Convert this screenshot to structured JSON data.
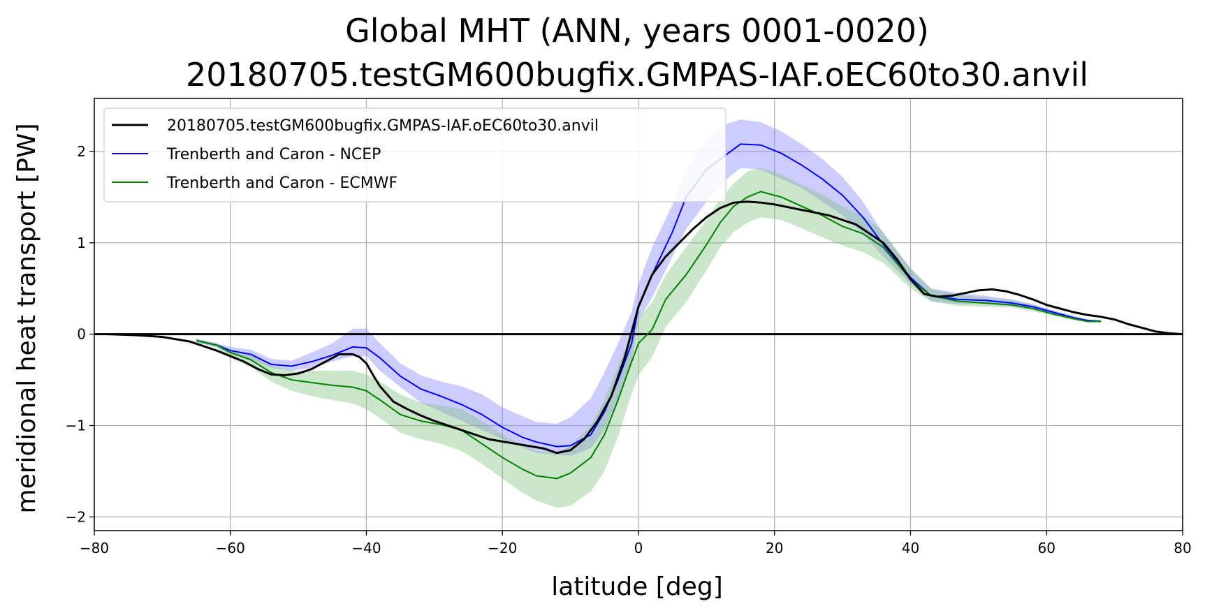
{
  "chart_data": {
    "type": "line",
    "title": "Global MHT (ANN, years 0001-0020)",
    "subtitle": "20180705.testGM600bugfix.GMPAS-IAF.oEC60to30.anvil",
    "xlabel": "latitude [deg]",
    "ylabel": "meridional heat transport [PW]",
    "xlim": [
      -80,
      80
    ],
    "ylim": [
      -2.15,
      2.58
    ],
    "xticks": [
      -80,
      -60,
      -40,
      -20,
      0,
      20,
      40,
      60,
      80
    ],
    "yticks": [
      -2,
      -1,
      0,
      1,
      2
    ],
    "grid": true,
    "legend": "upper-left",
    "zero_line": 0,
    "series": [
      {
        "name": "20180705.testGM600bugfix.GMPAS-IAF.oEC60to30.anvil",
        "color": "#000000",
        "x": [
          -78,
          -74,
          -70,
          -66,
          -62,
          -58,
          -56,
          -54,
          -52,
          -50,
          -48,
          -46,
          -44,
          -42,
          -41,
          -40,
          -39,
          -38,
          -36,
          -34,
          -32,
          -30,
          -26,
          -22,
          -18,
          -14,
          -12,
          -10,
          -8,
          -6,
          -4,
          -2,
          0,
          2,
          4,
          6,
          8,
          10,
          12,
          14,
          16,
          18,
          20,
          22,
          24,
          26,
          28,
          30,
          32,
          34,
          36,
          38,
          40,
          42,
          44,
          46,
          48,
          50,
          52,
          54,
          56,
          58,
          60,
          62,
          64,
          66,
          68,
          70,
          72,
          74,
          76,
          78,
          80
        ],
        "y": [
          0.0,
          -0.01,
          -0.03,
          -0.08,
          -0.18,
          -0.3,
          -0.38,
          -0.44,
          -0.45,
          -0.43,
          -0.38,
          -0.3,
          -0.22,
          -0.22,
          -0.25,
          -0.32,
          -0.45,
          -0.57,
          -0.74,
          -0.82,
          -0.89,
          -0.95,
          -1.05,
          -1.15,
          -1.2,
          -1.25,
          -1.3,
          -1.27,
          -1.15,
          -0.95,
          -0.68,
          -0.25,
          0.3,
          0.65,
          0.85,
          1.0,
          1.15,
          1.28,
          1.38,
          1.44,
          1.45,
          1.44,
          1.42,
          1.39,
          1.36,
          1.33,
          1.3,
          1.25,
          1.2,
          1.1,
          1.0,
          0.82,
          0.6,
          0.44,
          0.41,
          0.42,
          0.45,
          0.48,
          0.49,
          0.47,
          0.43,
          0.38,
          0.32,
          0.28,
          0.24,
          0.21,
          0.19,
          0.16,
          0.11,
          0.07,
          0.03,
          0.01,
          0.0
        ]
      },
      {
        "name": "Trenberth and Caron - NCEP",
        "color": "#0000ff",
        "band_color": "#8080ff",
        "x": [
          -65,
          -62,
          -60,
          -57,
          -54,
          -51,
          -48,
          -45,
          -42,
          -40,
          -38,
          -35,
          -32,
          -29,
          -26,
          -23,
          -20,
          -17,
          -15,
          -12,
          -10,
          -7,
          -5,
          -3,
          -1,
          0,
          2,
          5,
          7,
          10,
          13,
          15,
          18,
          21,
          24,
          27,
          30,
          33,
          36,
          40,
          43,
          47,
          51,
          55,
          58,
          61,
          64,
          66,
          68
        ],
        "y": [
          -0.07,
          -0.12,
          -0.18,
          -0.22,
          -0.33,
          -0.35,
          -0.3,
          -0.23,
          -0.14,
          -0.15,
          -0.26,
          -0.46,
          -0.6,
          -0.68,
          -0.77,
          -0.88,
          -1.02,
          -1.13,
          -1.18,
          -1.23,
          -1.22,
          -1.1,
          -0.85,
          -0.5,
          -0.1,
          0.3,
          0.65,
          1.12,
          1.5,
          1.8,
          1.97,
          2.08,
          2.07,
          1.98,
          1.85,
          1.7,
          1.52,
          1.28,
          0.98,
          0.62,
          0.42,
          0.38,
          0.37,
          0.34,
          0.3,
          0.24,
          0.18,
          0.15,
          0.14
        ],
        "lower": [
          -0.09,
          -0.14,
          -0.22,
          -0.27,
          -0.37,
          -0.4,
          -0.37,
          -0.3,
          -0.24,
          -0.24,
          -0.4,
          -0.58,
          -0.75,
          -0.85,
          -0.95,
          -1.05,
          -1.15,
          -1.24,
          -1.3,
          -1.32,
          -1.33,
          -1.25,
          -1.05,
          -0.7,
          -0.3,
          0.15,
          0.4,
          0.85,
          1.15,
          1.45,
          1.7,
          1.82,
          1.8,
          1.7,
          1.6,
          1.45,
          1.3,
          1.1,
          0.85,
          0.55,
          0.36,
          0.33,
          0.33,
          0.3,
          0.27,
          0.21,
          0.16,
          0.14,
          0.13
        ],
        "upper": [
          -0.05,
          -0.1,
          -0.14,
          -0.17,
          -0.27,
          -0.29,
          -0.2,
          -0.1,
          0.06,
          0.06,
          -0.1,
          -0.32,
          -0.45,
          -0.52,
          -0.57,
          -0.66,
          -0.8,
          -0.9,
          -0.96,
          -0.98,
          -0.91,
          -0.7,
          -0.42,
          -0.1,
          0.25,
          0.55,
          0.95,
          1.42,
          1.8,
          2.12,
          2.3,
          2.35,
          2.32,
          2.22,
          2.08,
          1.92,
          1.72,
          1.45,
          1.1,
          0.72,
          0.5,
          0.45,
          0.42,
          0.38,
          0.33,
          0.26,
          0.2,
          0.16,
          0.15
        ]
      },
      {
        "name": "Trenberth and Caron - ECMWF",
        "color": "#008000",
        "band_color": "#80c080",
        "x": [
          -65,
          -62,
          -60,
          -57,
          -54,
          -51,
          -48,
          -45,
          -42,
          -40,
          -38,
          -35,
          -32,
          -29,
          -26,
          -23,
          -20,
          -17,
          -15,
          -12,
          -10,
          -7,
          -5,
          -3,
          -1,
          0,
          2,
          4,
          7,
          10,
          12,
          14,
          16,
          18,
          21,
          24,
          27,
          30,
          33,
          36,
          40,
          43,
          47,
          51,
          55,
          58,
          61,
          64,
          66,
          68
        ],
        "y": [
          -0.07,
          -0.12,
          -0.2,
          -0.28,
          -0.42,
          -0.5,
          -0.53,
          -0.56,
          -0.58,
          -0.62,
          -0.72,
          -0.88,
          -0.95,
          -0.99,
          -1.05,
          -1.2,
          -1.35,
          -1.48,
          -1.55,
          -1.58,
          -1.52,
          -1.35,
          -1.1,
          -0.72,
          -0.3,
          -0.1,
          0.05,
          0.38,
          0.65,
          0.98,
          1.22,
          1.4,
          1.5,
          1.56,
          1.5,
          1.4,
          1.3,
          1.18,
          1.1,
          0.95,
          0.6,
          0.42,
          0.36,
          0.34,
          0.32,
          0.28,
          0.22,
          0.17,
          0.14,
          0.14
        ],
        "lower": [
          -0.09,
          -0.15,
          -0.26,
          -0.36,
          -0.52,
          -0.62,
          -0.68,
          -0.72,
          -0.76,
          -0.82,
          -0.92,
          -1.08,
          -1.15,
          -1.2,
          -1.28,
          -1.42,
          -1.58,
          -1.74,
          -1.82,
          -1.9,
          -1.88,
          -1.72,
          -1.5,
          -1.12,
          -0.65,
          -0.45,
          -0.25,
          0.08,
          0.35,
          0.7,
          0.95,
          1.12,
          1.22,
          1.28,
          1.25,
          1.16,
          1.06,
          0.97,
          0.9,
          0.78,
          0.5,
          0.36,
          0.31,
          0.3,
          0.29,
          0.25,
          0.2,
          0.15,
          0.13,
          0.13
        ],
        "upper": [
          -0.05,
          -0.1,
          -0.16,
          -0.22,
          -0.34,
          -0.4,
          -0.4,
          -0.4,
          -0.4,
          -0.44,
          -0.52,
          -0.66,
          -0.75,
          -0.78,
          -0.82,
          -0.95,
          -1.1,
          -1.22,
          -1.28,
          -1.3,
          -1.22,
          -1.0,
          -0.72,
          -0.35,
          0.0,
          0.18,
          0.35,
          0.65,
          0.95,
          1.25,
          1.48,
          1.65,
          1.78,
          1.82,
          1.75,
          1.63,
          1.53,
          1.4,
          1.3,
          1.12,
          0.72,
          0.5,
          0.43,
          0.4,
          0.37,
          0.32,
          0.25,
          0.19,
          0.16,
          0.16
        ]
      }
    ]
  }
}
